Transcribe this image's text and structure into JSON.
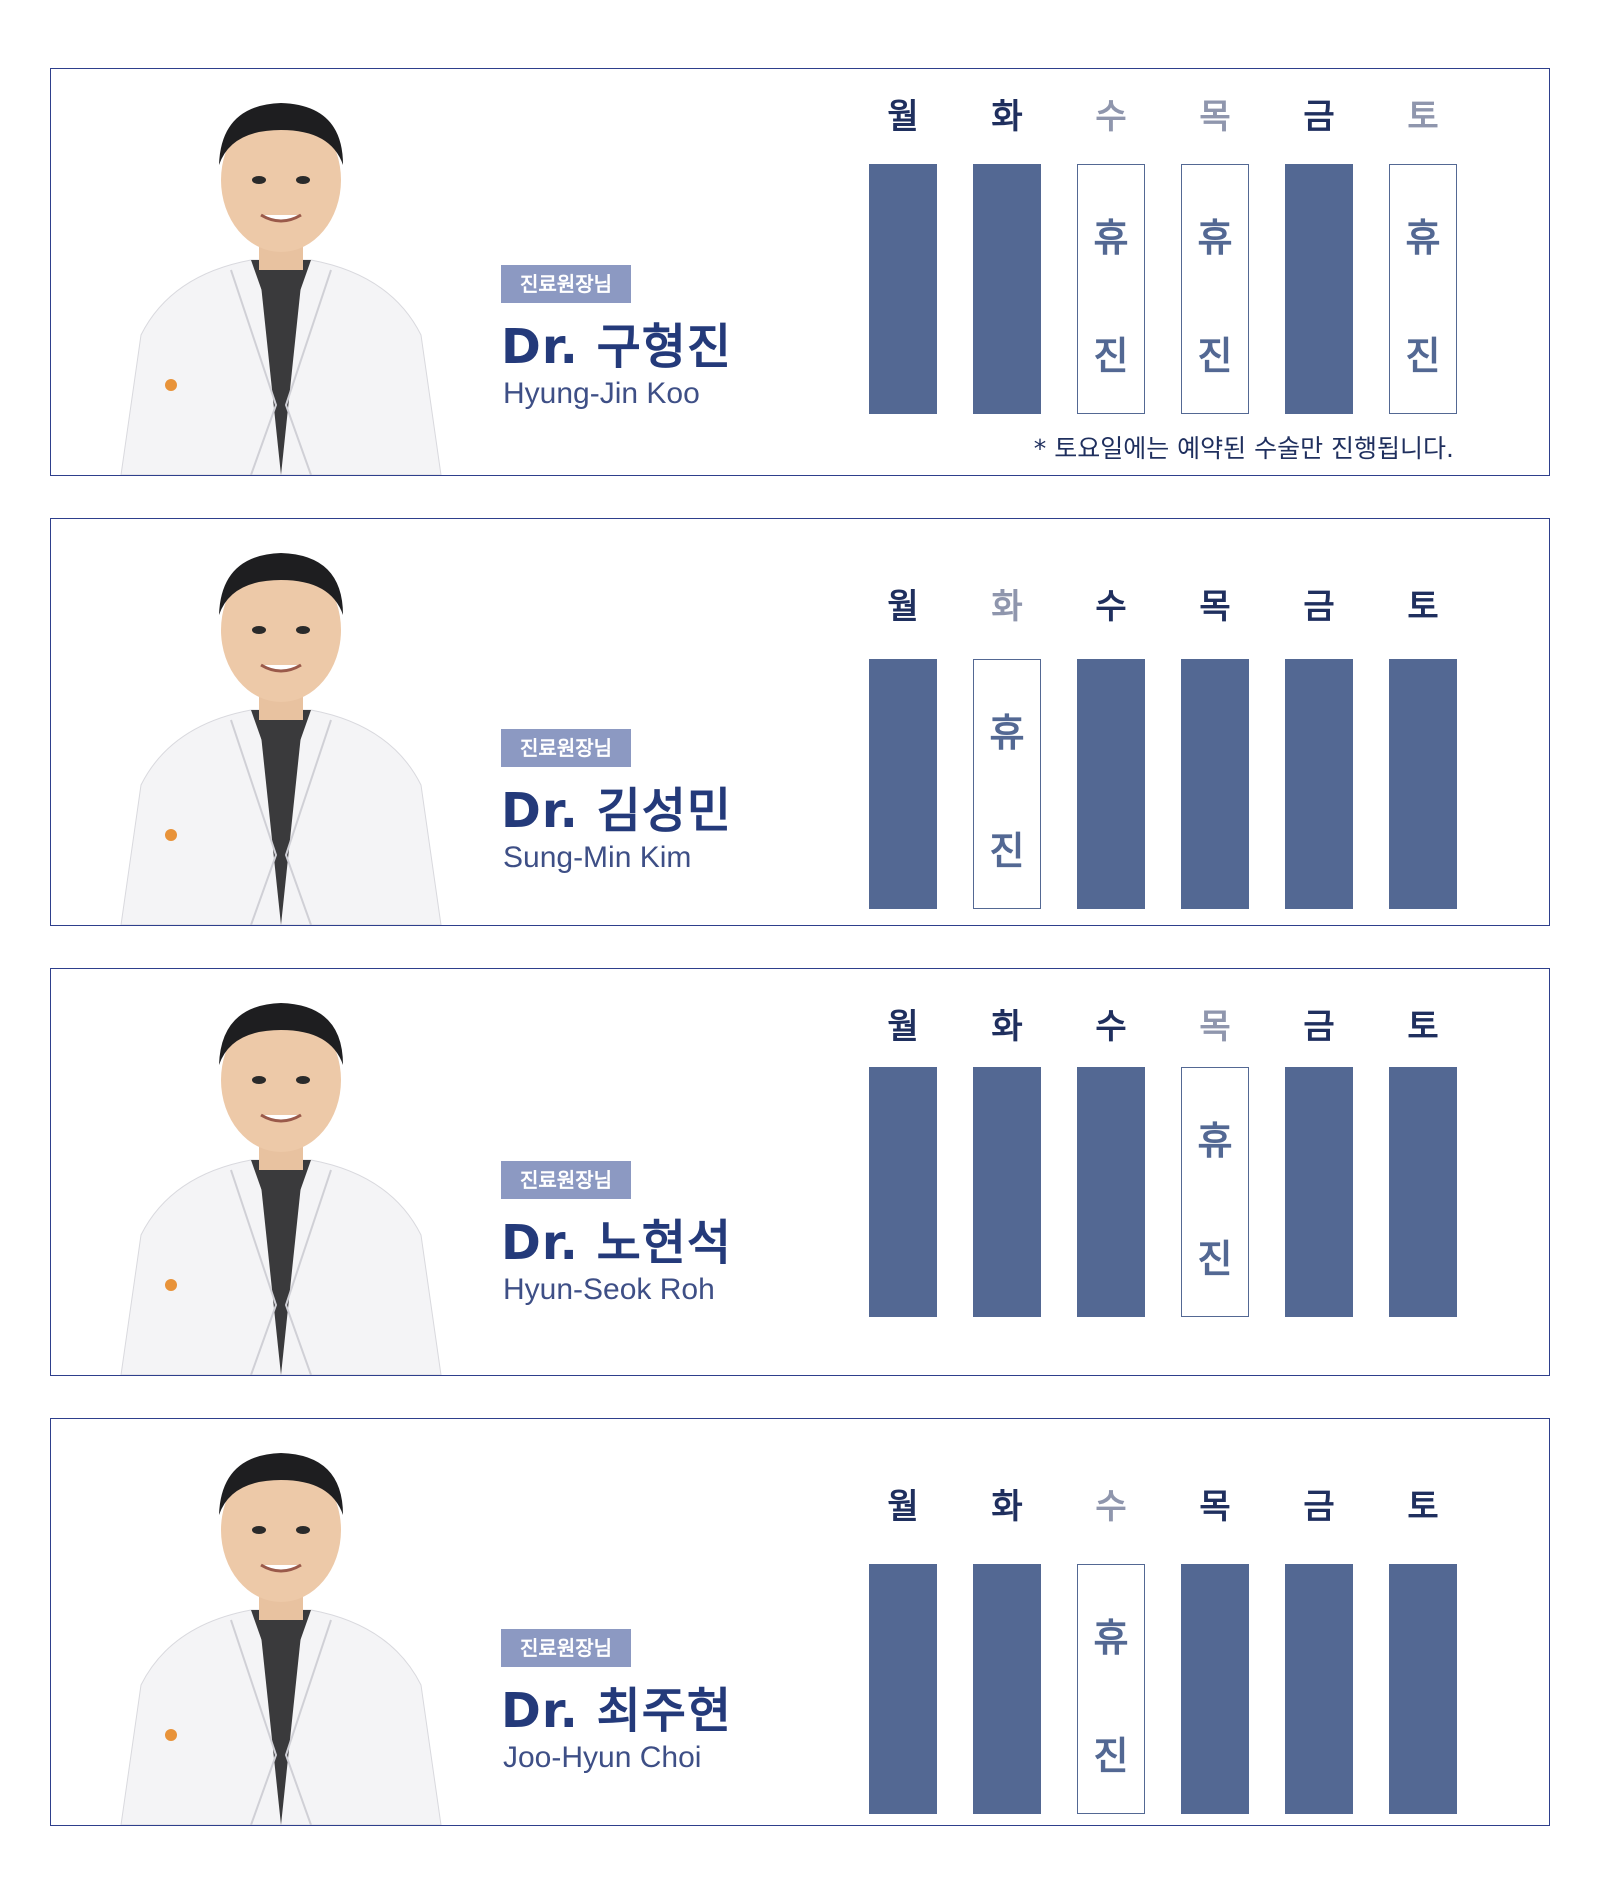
{
  "badge_label": "진료원장님",
  "off_chars": [
    "휴",
    "진"
  ],
  "day_names": [
    "월",
    "화",
    "수",
    "목",
    "금",
    "토"
  ],
  "colors": {
    "border": "#2e3f8c",
    "badge": "#8c99c2",
    "bar": "#536893",
    "name": "#243a7a"
  },
  "doctors": [
    {
      "name": "Dr. 구형진",
      "english": "Hyung-Jin Koo",
      "off_days": [
        2,
        3,
        5
      ],
      "note": "* 토요일에는 예약된 수술만 진행됩니다.",
      "photo": "doctor-photo-koo"
    },
    {
      "name": "Dr. 김성민",
      "english": "Sung-Min Kim",
      "off_days": [
        1
      ],
      "note": "",
      "photo": "doctor-photo-kim"
    },
    {
      "name": "Dr. 노현석",
      "english": "Hyun-Seok Roh",
      "off_days": [
        3
      ],
      "note": "",
      "photo": "doctor-photo-roh"
    },
    {
      "name": "Dr. 최주현",
      "english": "Joo-Hyun Choi",
      "off_days": [
        2
      ],
      "note": "",
      "photo": "doctor-photo-choi"
    }
  ]
}
